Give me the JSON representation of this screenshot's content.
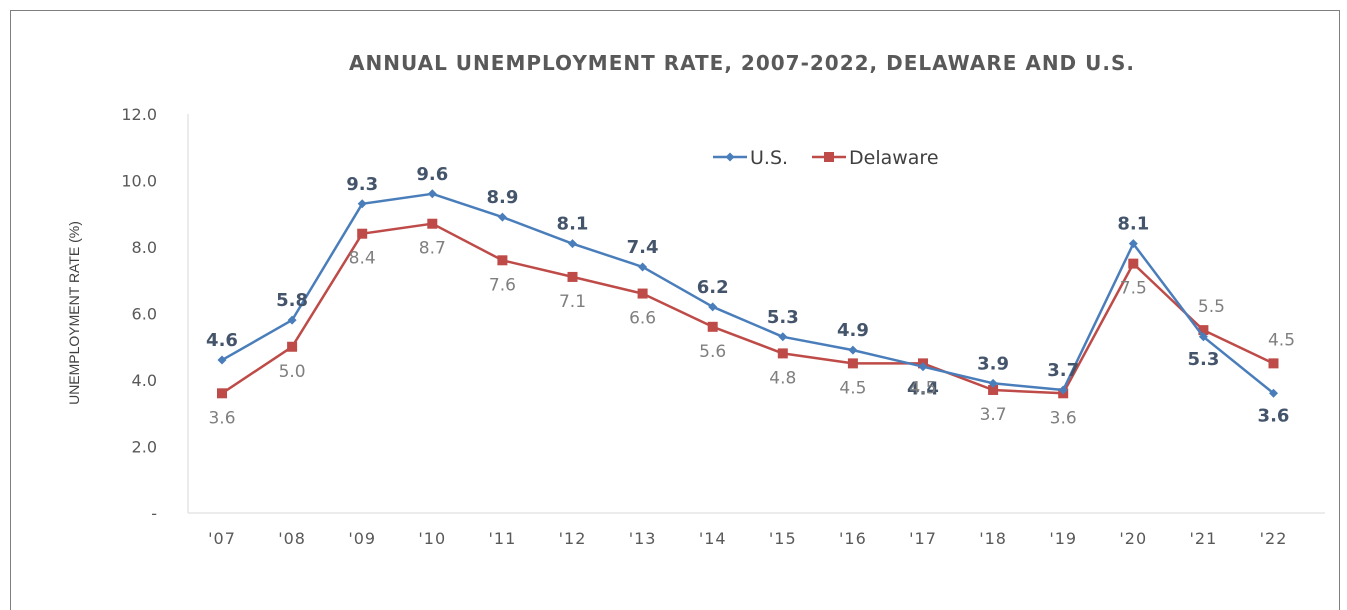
{
  "chart_data": {
    "type": "line",
    "title": "ANNUAL UNEMPLOYMENT RATE, 2007-2022, DELAWARE AND U.S.",
    "xlabel": "",
    "ylabel": "UNEMPLOYMENT RATE (%)",
    "ylim": [
      0,
      12
    ],
    "yticks": [
      "-",
      "2.0",
      "4.0",
      "6.0",
      "8.0",
      "10.0",
      "12.0"
    ],
    "ytick_values": [
      0,
      2,
      4,
      6,
      8,
      10,
      12
    ],
    "categories": [
      "'07",
      "'08",
      "'09",
      "'10",
      "'11",
      "'12",
      "'13",
      "'14",
      "'15",
      "'16",
      "'17",
      "'18",
      "'19",
      "'20",
      "'21",
      "'22"
    ],
    "grid": false,
    "legend_position": "top-right",
    "series": [
      {
        "name": "U.S.",
        "color": "#4a7ebb",
        "values": [
          4.6,
          5.8,
          9.3,
          9.6,
          8.9,
          8.1,
          7.4,
          6.2,
          5.3,
          4.9,
          4.4,
          3.9,
          3.7,
          8.1,
          5.3,
          3.6
        ],
        "labels": [
          "4.6",
          "5.8",
          "9.3",
          "9.6",
          "8.9",
          "8.1",
          "7.4",
          "6.2",
          "5.3",
          "4.9",
          "4.4",
          "3.9",
          "3.7",
          "8.1",
          "5.3",
          "3.6"
        ]
      },
      {
        "name": "Delaware",
        "color": "#be4b48",
        "values": [
          3.6,
          5.0,
          8.4,
          8.7,
          7.6,
          7.1,
          6.6,
          5.6,
          4.8,
          4.5,
          4.5,
          3.7,
          3.6,
          7.5,
          5.5,
          4.5
        ],
        "labels": [
          "3.6",
          "5.0",
          "8.4",
          "8.7",
          "7.6",
          "7.1",
          "6.6",
          "5.6",
          "4.8",
          "4.5",
          "4.5",
          "3.7",
          "3.6",
          "7.5",
          "5.5",
          "4.5"
        ]
      }
    ]
  }
}
